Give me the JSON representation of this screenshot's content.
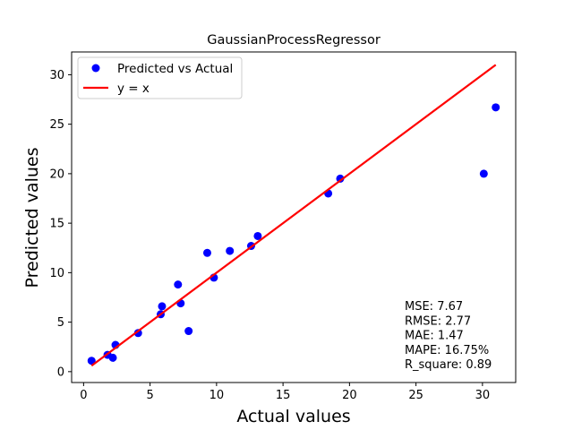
{
  "chart_data": {
    "type": "scatter",
    "title": "GaussianProcessRegressor",
    "xlabel": "Actual values",
    "ylabel": "Predicted values",
    "xlim": [
      -0.9,
      32.5
    ],
    "ylim": [
      -1.1,
      32.3
    ],
    "xticks": [
      0,
      5,
      10,
      15,
      20,
      25,
      30
    ],
    "yticks": [
      0,
      5,
      10,
      15,
      20,
      25,
      30
    ],
    "grid": false,
    "legend_position": "upper-left",
    "series": [
      {
        "name": "Predicted vs Actual",
        "kind": "scatter",
        "color": "#0000ff",
        "points": [
          {
            "x": 0.6,
            "y": 1.1
          },
          {
            "x": 1.8,
            "y": 1.7
          },
          {
            "x": 2.2,
            "y": 1.4
          },
          {
            "x": 2.4,
            "y": 2.7
          },
          {
            "x": 4.1,
            "y": 3.9
          },
          {
            "x": 5.8,
            "y": 5.8
          },
          {
            "x": 5.9,
            "y": 6.6
          },
          {
            "x": 7.1,
            "y": 8.8
          },
          {
            "x": 7.3,
            "y": 6.9
          },
          {
            "x": 7.9,
            "y": 4.1
          },
          {
            "x": 9.3,
            "y": 12.0
          },
          {
            "x": 9.8,
            "y": 9.5
          },
          {
            "x": 11.0,
            "y": 12.2
          },
          {
            "x": 12.6,
            "y": 12.7
          },
          {
            "x": 13.1,
            "y": 13.7
          },
          {
            "x": 18.4,
            "y": 18.0
          },
          {
            "x": 19.3,
            "y": 19.5
          },
          {
            "x": 30.1,
            "y": 20.0
          },
          {
            "x": 31.0,
            "y": 26.7
          }
        ]
      },
      {
        "name": "y = x",
        "kind": "line",
        "color": "#ff0000",
        "x": [
          0.6,
          31.0
        ],
        "y": [
          0.6,
          31.0
        ]
      }
    ],
    "annotations": [
      "MSE: 7.67",
      "RMSE: 2.77",
      "MAE: 1.47",
      "MAPE: 16.75%",
      "R_square: 0.89"
    ]
  }
}
